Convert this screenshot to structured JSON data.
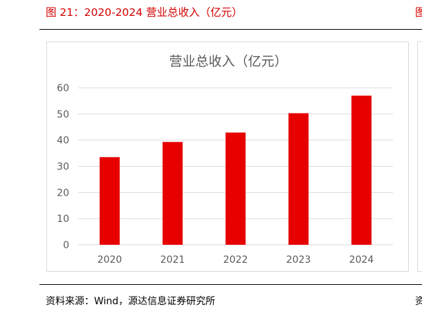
{
  "figure": {
    "title": "图 21：2020-2024 营业总收入（亿元）",
    "next_title_fragment": "图",
    "source": "资料来源：Wind，源达信息证券研究所",
    "next_source_fragment": "资"
  },
  "chart_data": {
    "type": "bar",
    "title": "营业总收入（亿元）",
    "xlabel": "",
    "ylabel": "",
    "categories": [
      "2020",
      "2021",
      "2022",
      "2023",
      "2024"
    ],
    "values": [
      33.5,
      39.3,
      42.9,
      50.3,
      57.0
    ],
    "ylim": [
      0,
      60
    ],
    "yticks": [
      "0",
      "10",
      "20",
      "30",
      "40",
      "50",
      "60"
    ],
    "grid": true,
    "legend": "none",
    "bar_color": "#e60000",
    "grid_color": "#d9d9d9",
    "tick_color": "#595959"
  }
}
